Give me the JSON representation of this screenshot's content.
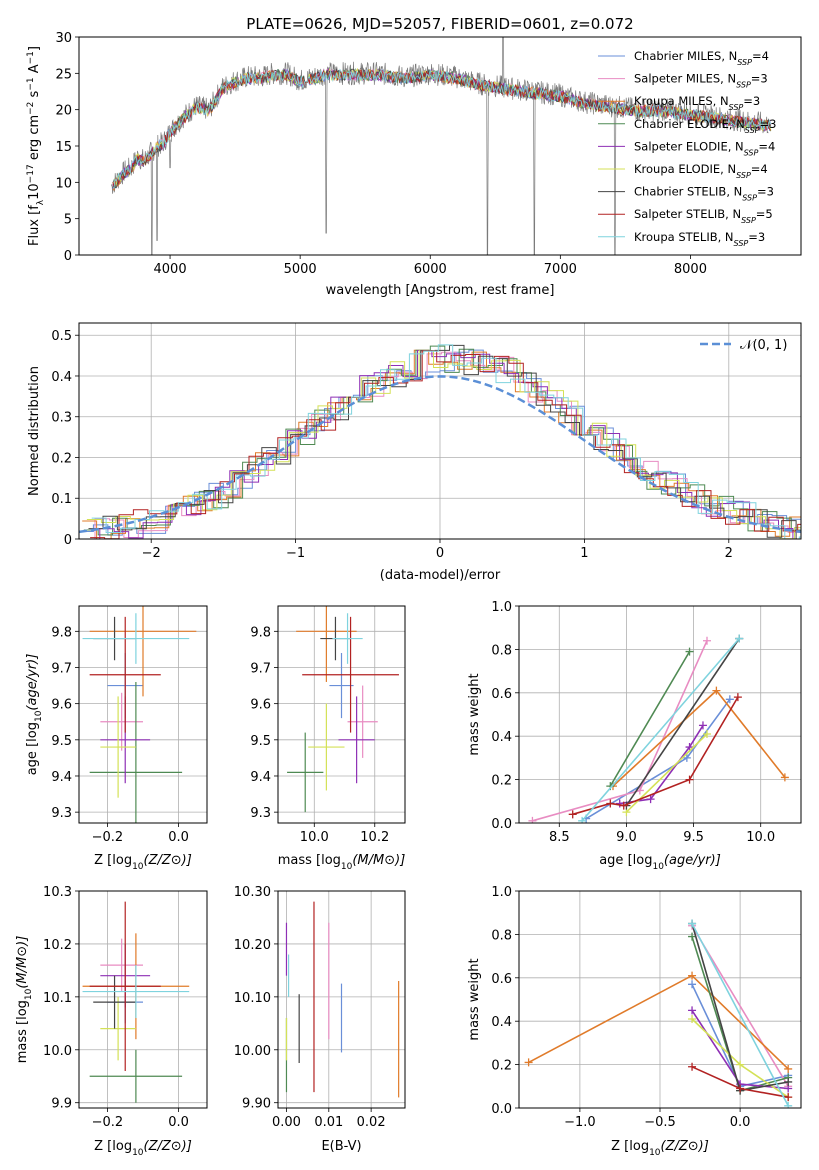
{
  "chart_data": [
    {
      "id": "spectrum",
      "type": "line",
      "title": "PLATE=0626, MJD=52057, FIBERID=0601, z=0.072",
      "xlabel": "wavelength [Angstrom, rest frame]",
      "ylabel": "Flux [f_λ10^-17 erg cm^-2 s^-1 A^-1]",
      "xlim": [
        3300,
        8850
      ],
      "ylim": [
        0,
        30
      ],
      "xticks": [
        4000,
        5000,
        6000,
        7000,
        8000
      ],
      "yticks": [
        0,
        5,
        10,
        15,
        20,
        25,
        30
      ],
      "grid": false,
      "legend_position": "top-right",
      "observed_curve": {
        "wavelength": [
          3550,
          3600,
          3650,
          3700,
          3750,
          3800,
          3850,
          3900,
          3950,
          4000,
          4100,
          4200,
          4300,
          4400,
          4500,
          4600,
          4700,
          4800,
          4900,
          5000,
          5200,
          5400,
          5600,
          5800,
          6000,
          6200,
          6400,
          6600,
          6800,
          7000,
          7200,
          7400,
          7600,
          7800,
          8000,
          8200,
          8400,
          8600
        ],
        "flux": [
          9.5,
          10.5,
          11.5,
          12,
          13.5,
          13,
          14,
          15,
          15.5,
          17,
          19,
          20.5,
          20,
          23,
          24,
          24.5,
          24.5,
          25,
          25,
          24,
          25,
          25,
          25,
          24.5,
          25,
          24.5,
          23.5,
          23,
          22.5,
          22,
          21,
          20.5,
          20,
          20,
          19.5,
          19,
          18.5,
          18
        ]
      },
      "series": [
        {
          "name": "Chabrier MILES, N_SSP=4",
          "color": "#6a8fd8"
        },
        {
          "name": "Salpeter MILES, N_SSP=3",
          "color": "#e88cc2"
        },
        {
          "name": "Kroupa MILES, N_SSP=3",
          "color": "#e07b2a"
        },
        {
          "name": "Chabrier ELODIE, N_SSP=3",
          "color": "#4f8a53"
        },
        {
          "name": "Salpeter ELODIE, N_SSP=4",
          "color": "#8e2fb5"
        },
        {
          "name": "Kroupa ELODIE, N_SSP=4",
          "color": "#d4e157"
        },
        {
          "name": "Chabrier STELIB, N_SSP=3",
          "color": "#444444"
        },
        {
          "name": "Salpeter STELIB, N_SSP=5",
          "color": "#b22222"
        },
        {
          "name": "Kroupa STELIB, N_SSP=3",
          "color": "#7fd3de"
        }
      ]
    },
    {
      "id": "residuals",
      "type": "line",
      "xlabel": "(data-model)/error",
      "ylabel": "Normed distribution",
      "xlim": [
        -2.5,
        2.5
      ],
      "ylim": [
        0,
        0.53
      ],
      "xticks": [
        -2,
        -1,
        0,
        1,
        2
      ],
      "yticks": [
        0.0,
        0.1,
        0.2,
        0.3,
        0.4,
        0.5
      ],
      "grid": true,
      "legend_position": "top-right",
      "legend": [
        "𝒩(0, 1)"
      ],
      "normal_curve": {
        "mu": 0,
        "sigma": 1,
        "color": "#5b8fd6"
      },
      "histogram_envelope": {
        "x": [
          -2.5,
          -2.0,
          -1.5,
          -1.0,
          -0.5,
          0.0,
          0.5,
          1.0,
          1.5,
          2.0,
          2.5
        ],
        "y": [
          0.02,
          0.04,
          0.11,
          0.24,
          0.37,
          0.45,
          0.41,
          0.28,
          0.15,
          0.07,
          0.02
        ]
      }
    },
    {
      "id": "age-vs-Z",
      "type": "scatter",
      "xlabel": "Z [log10(Z/Z⊙)]",
      "ylabel": "age  [log10(age/yr)]",
      "xlim": [
        -0.28,
        0.08
      ],
      "ylim": [
        9.27,
        9.87
      ],
      "xticks": [
        -0.2,
        0.0
      ],
      "yticks": [
        9.3,
        9.4,
        9.5,
        9.6,
        9.7,
        9.8
      ],
      "grid": true,
      "points": [
        {
          "color": "#6a8fd8",
          "x": -0.15,
          "y": 9.65,
          "xerr": 0.05,
          "yerr": 0.09
        },
        {
          "color": "#e88cc2",
          "x": -0.16,
          "y": 9.55,
          "xerr": 0.06,
          "yerr": 0.08
        },
        {
          "color": "#e07b2a",
          "x": -0.1,
          "y": 9.8,
          "xerr": 0.15,
          "yerr": 0.18
        },
        {
          "color": "#4f8a53",
          "x": -0.12,
          "y": 9.41,
          "xerr": 0.13,
          "yerr": 0.25
        },
        {
          "color": "#8e2fb5",
          "x": -0.15,
          "y": 9.5,
          "xerr": 0.07,
          "yerr": 0.12
        },
        {
          "color": "#d4e157",
          "x": -0.17,
          "y": 9.48,
          "xerr": 0.05,
          "yerr": 0.14
        },
        {
          "color": "#444444",
          "x": -0.18,
          "y": 9.78,
          "xerr": 0.06,
          "yerr": 0.06
        },
        {
          "color": "#b22222",
          "x": -0.15,
          "y": 9.68,
          "xerr": 0.1,
          "yerr": 0.16
        },
        {
          "color": "#7fd3de",
          "x": -0.12,
          "y": 9.78,
          "xerr": 0.15,
          "yerr": 0.07
        }
      ]
    },
    {
      "id": "age-vs-mass",
      "type": "scatter",
      "xlabel": "mass [log10(M/M⊙)]",
      "ylabel": "",
      "xlim": [
        9.88,
        10.3
      ],
      "ylim": [
        9.27,
        9.87
      ],
      "xticks": [
        10.0,
        10.2
      ],
      "yticks": [
        9.3,
        9.4,
        9.5,
        9.6,
        9.7,
        9.8
      ],
      "grid": true,
      "points": [
        {
          "color": "#6a8fd8",
          "x": 10.09,
          "y": 9.65,
          "xerr": 0.04,
          "yerr": 0.09
        },
        {
          "color": "#e88cc2",
          "x": 10.16,
          "y": 9.55,
          "xerr": 0.05,
          "yerr": 0.1
        },
        {
          "color": "#e07b2a",
          "x": 10.04,
          "y": 9.8,
          "xerr": 0.1,
          "yerr": 0.14
        },
        {
          "color": "#4f8a53",
          "x": 9.97,
          "y": 9.41,
          "xerr": 0.06,
          "yerr": 0.11
        },
        {
          "color": "#8e2fb5",
          "x": 10.14,
          "y": 9.5,
          "xerr": 0.06,
          "yerr": 0.12
        },
        {
          "color": "#d4e157",
          "x": 10.04,
          "y": 9.48,
          "xerr": 0.06,
          "yerr": 0.12
        },
        {
          "color": "#444444",
          "x": 10.07,
          "y": 9.78,
          "xerr": 0.05,
          "yerr": 0.06
        },
        {
          "color": "#b22222",
          "x": 10.12,
          "y": 9.68,
          "xerr": 0.16,
          "yerr": 0.16
        },
        {
          "color": "#7fd3de",
          "x": 10.11,
          "y": 9.78,
          "xerr": 0.05,
          "yerr": 0.07
        }
      ]
    },
    {
      "id": "weight-vs-age",
      "type": "line",
      "xlabel": "age  [log10(age/yr)]",
      "ylabel": "mass weight",
      "xlim": [
        8.2,
        10.3
      ],
      "ylim": [
        0.0,
        1.0
      ],
      "xticks": [
        8.5,
        9.0,
        9.5,
        10.0
      ],
      "yticks": [
        0.0,
        0.2,
        0.4,
        0.6,
        0.8,
        1.0
      ],
      "grid": true,
      "series": [
        {
          "color": "#6a8fd8",
          "x": [
            8.7,
            9.45,
            9.77
          ],
          "y": [
            0.02,
            0.3,
            0.57
          ]
        },
        {
          "color": "#e88cc2",
          "x": [
            8.3,
            9.1,
            9.6
          ],
          "y": [
            0.01,
            0.15,
            0.84
          ]
        },
        {
          "color": "#e07b2a",
          "x": [
            8.9,
            9.67,
            10.18
          ],
          "y": [
            0.17,
            0.61,
            0.21
          ]
        },
        {
          "color": "#4f8a53",
          "x": [
            8.88,
            9.47
          ],
          "y": [
            0.17,
            0.79
          ]
        },
        {
          "color": "#8e2fb5",
          "x": [
            8.95,
            9.18,
            9.47,
            9.57
          ],
          "y": [
            0.09,
            0.11,
            0.35,
            0.45
          ]
        },
        {
          "color": "#d4e157",
          "x": [
            9.0,
            9.6
          ],
          "y": [
            0.05,
            0.41
          ]
        },
        {
          "color": "#444444",
          "x": [
            9.0,
            9.84
          ],
          "y": [
            0.08,
            0.85
          ]
        },
        {
          "color": "#b22222",
          "x": [
            8.6,
            8.88,
            8.98,
            9.47,
            9.83
          ],
          "y": [
            0.04,
            0.09,
            0.08,
            0.2,
            0.58
          ]
        },
        {
          "color": "#7fd3de",
          "x": [
            8.67,
            9.84
          ],
          "y": [
            0.01,
            0.85
          ]
        }
      ]
    },
    {
      "id": "mass-vs-Z",
      "type": "scatter",
      "xlabel": "Z [log10(Z/Z⊙)]",
      "ylabel": "mass [log10(M/M⊙)]",
      "xlim": [
        -0.28,
        0.08
      ],
      "ylim": [
        9.89,
        10.3
      ],
      "xticks": [
        -0.2,
        0.0
      ],
      "yticks": [
        9.9,
        10.0,
        10.1,
        10.2,
        10.3
      ],
      "grid": true,
      "points": [
        {
          "color": "#6a8fd8",
          "x": -0.15,
          "y": 10.09,
          "xerr": 0.05,
          "yerr": 0.04
        },
        {
          "color": "#e88cc2",
          "x": -0.16,
          "y": 10.16,
          "xerr": 0.06,
          "yerr": 0.05
        },
        {
          "color": "#e07b2a",
          "x": -0.12,
          "y": 10.12,
          "xerr": 0.15,
          "yerr": 0.1
        },
        {
          "color": "#4f8a53",
          "x": -0.12,
          "y": 9.95,
          "xerr": 0.13,
          "yerr": 0.05
        },
        {
          "color": "#8e2fb5",
          "x": -0.15,
          "y": 10.14,
          "xerr": 0.07,
          "yerr": 0.06
        },
        {
          "color": "#d4e157",
          "x": -0.17,
          "y": 10.04,
          "xerr": 0.05,
          "yerr": 0.06
        },
        {
          "color": "#444444",
          "x": -0.18,
          "y": 10.09,
          "xerr": 0.06,
          "yerr": 0.05
        },
        {
          "color": "#b22222",
          "x": -0.15,
          "y": 10.12,
          "xerr": 0.1,
          "yerr": 0.16
        },
        {
          "color": "#7fd3de",
          "x": -0.12,
          "y": 10.11,
          "xerr": 0.15,
          "yerr": 0.05
        }
      ]
    },
    {
      "id": "mass-vs-ebv",
      "type": "scatter",
      "xlabel": "E(B-V)",
      "ylabel": "",
      "xlim": [
        -0.002,
        0.028
      ],
      "ylim": [
        9.89,
        10.3
      ],
      "xticks": [
        0.0,
        0.01,
        0.02
      ],
      "yticks": [
        9.9,
        10.0,
        10.1,
        10.2,
        10.3
      ],
      "grid": true,
      "points": [
        {
          "color": "#6a8fd8",
          "x": 0.013,
          "y": 10.06,
          "xerr": 0,
          "yerr": 0.065
        },
        {
          "color": "#e88cc2",
          "x": 0.01,
          "y": 10.13,
          "xerr": 0,
          "yerr": 0.11
        },
        {
          "color": "#e07b2a",
          "x": 0.0265,
          "y": 10.02,
          "xerr": 0,
          "yerr": 0.11
        },
        {
          "color": "#4f8a53",
          "x": 0.0,
          "y": 9.99,
          "xerr": 0,
          "yerr": 0.07
        },
        {
          "color": "#8e2fb5",
          "x": 0.0,
          "y": 10.19,
          "xerr": 0,
          "yerr": 0.05
        },
        {
          "color": "#d4e157",
          "x": 0.0,
          "y": 10.02,
          "xerr": 0,
          "yerr": 0.04
        },
        {
          "color": "#444444",
          "x": 0.003,
          "y": 10.04,
          "xerr": 0,
          "yerr": 0.065
        },
        {
          "color": "#b22222",
          "x": 0.0065,
          "y": 10.1,
          "xerr": 0,
          "yerr": 0.18
        },
        {
          "color": "#7fd3de",
          "x": 0.0005,
          "y": 10.14,
          "xerr": 0,
          "yerr": 0.04
        }
      ]
    },
    {
      "id": "weight-vs-Z",
      "type": "line",
      "xlabel": "Z [log10(Z/Z⊙)]",
      "ylabel": "mass weight",
      "xlim": [
        -1.38,
        0.38
      ],
      "ylim": [
        0.0,
        1.0
      ],
      "xticks": [
        -1.0,
        -0.5,
        0.0
      ],
      "yticks": [
        0.0,
        0.2,
        0.4,
        0.6,
        0.8,
        1.0
      ],
      "grid": true,
      "series": [
        {
          "color": "#6a8fd8",
          "x": [
            -0.3,
            0.0,
            0.3
          ],
          "y": [
            0.57,
            0.1,
            0.15
          ]
        },
        {
          "color": "#e88cc2",
          "x": [
            -0.3,
            0.3
          ],
          "y": [
            0.84,
            0.1
          ]
        },
        {
          "color": "#e07b2a",
          "x": [
            -1.32,
            -0.3,
            0.3
          ],
          "y": [
            0.21,
            0.61,
            0.18
          ]
        },
        {
          "color": "#4f8a53",
          "x": [
            -0.3,
            0.0,
            0.3
          ],
          "y": [
            0.79,
            0.08,
            0.14
          ]
        },
        {
          "color": "#8e2fb5",
          "x": [
            -0.3,
            0.0,
            0.3
          ],
          "y": [
            0.45,
            0.11,
            0.09
          ]
        },
        {
          "color": "#d4e157",
          "x": [
            -0.3,
            0.0,
            0.3
          ],
          "y": [
            0.41,
            0.2,
            0.05
          ]
        },
        {
          "color": "#444444",
          "x": [
            -0.3,
            0.0,
            0.3
          ],
          "y": [
            0.85,
            0.08,
            0.12
          ]
        },
        {
          "color": "#b22222",
          "x": [
            -0.3,
            0.0,
            0.3
          ],
          "y": [
            0.19,
            0.09,
            0.05
          ]
        },
        {
          "color": "#7fd3de",
          "x": [
            -0.3,
            0.3
          ],
          "y": [
            0.85,
            0.01
          ]
        }
      ]
    }
  ]
}
